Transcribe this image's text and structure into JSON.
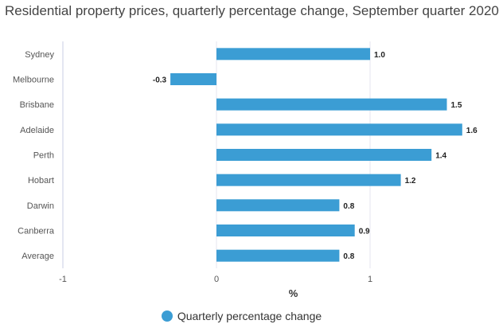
{
  "chart_data": {
    "type": "bar",
    "orientation": "horizontal",
    "title": "Residential property prices, quarterly percentage change, September quarter 2020",
    "categories": [
      "Sydney",
      "Melbourne",
      "Brisbane",
      "Adelaide",
      "Perth",
      "Hobart",
      "Darwin",
      "Canberra",
      "Average"
    ],
    "series": [
      {
        "name": "Quarterly percentage change",
        "values": [
          1.0,
          -0.3,
          1.5,
          1.6,
          1.4,
          1.2,
          0.8,
          0.9,
          0.8
        ],
        "data_labels": [
          "1.0",
          "-0.3",
          "1.5",
          "1.6",
          "1.4",
          "1.2",
          "0.8",
          "0.9",
          "0.8"
        ],
        "color": "#3b9dd4"
      }
    ],
    "xlabel": "%",
    "xlim": [
      -1,
      1.6
    ],
    "xticks": [
      -1,
      0,
      1
    ],
    "xtick_labels": [
      "-1",
      "0",
      "1"
    ],
    "grid": true,
    "legend_position": "bottom"
  }
}
